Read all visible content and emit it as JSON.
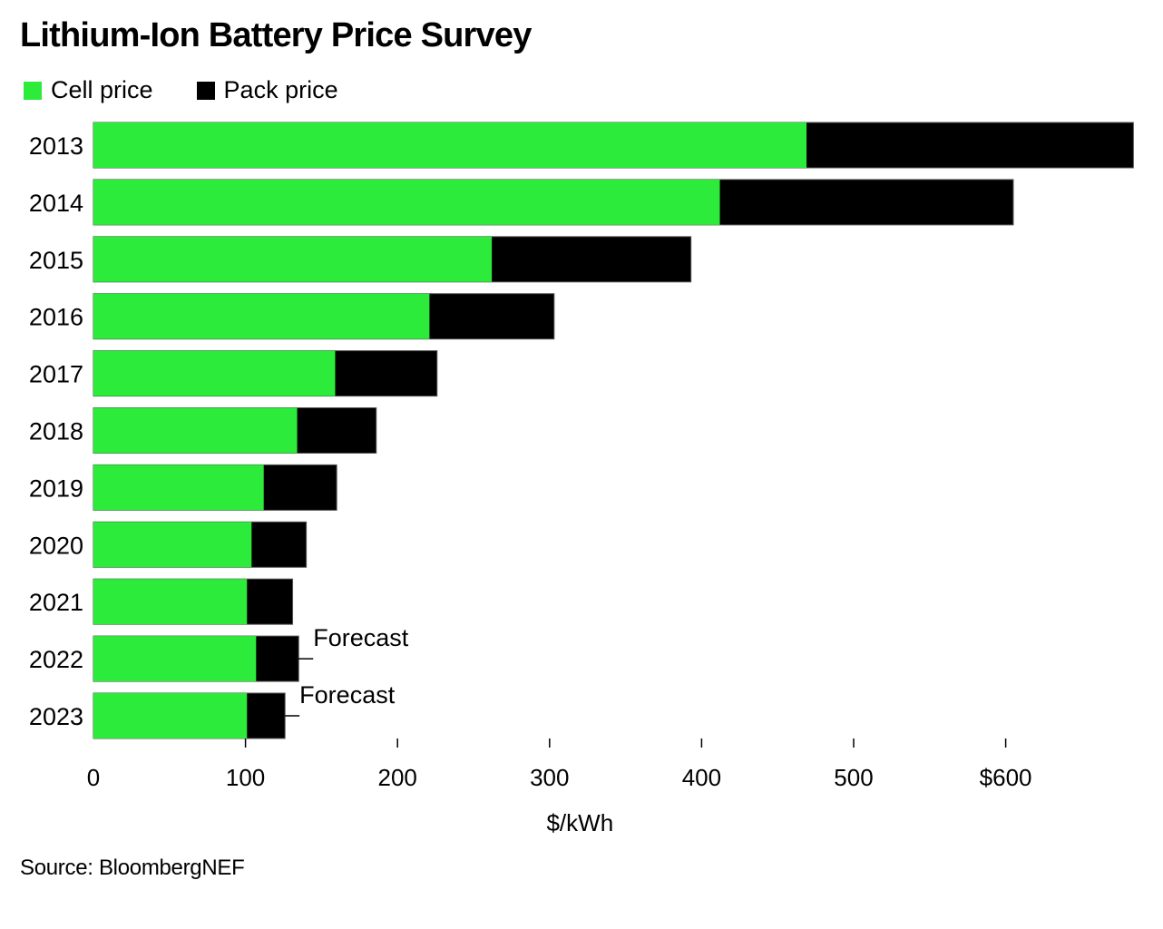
{
  "chart_data": {
    "type": "bar",
    "orientation": "horizontal",
    "stacked": true,
    "title": "Lithium-Ion Battery Price Survey",
    "xlabel": "$/kWh",
    "ylabel": "",
    "xlim": [
      0,
      684
    ],
    "x_ticks": [
      0,
      100,
      200,
      300,
      400,
      500,
      600
    ],
    "x_tick_labels": [
      "0",
      "100",
      "200",
      "300",
      "400",
      "500",
      "$600"
    ],
    "categories": [
      "2013",
      "2014",
      "2015",
      "2016",
      "2017",
      "2018",
      "2019",
      "2020",
      "2021",
      "2022",
      "2023"
    ],
    "series": [
      {
        "name": "Cell price",
        "color": "#2ceb3a",
        "values": [
          469,
          412,
          262,
          221,
          159,
          134,
          112,
          104,
          101,
          107,
          101
        ]
      },
      {
        "name": "Pack price",
        "color": "#000000",
        "values": [
          684,
          605,
          393,
          303,
          226,
          186,
          160,
          140,
          131,
          135,
          126
        ]
      }
    ],
    "note": "Pack price bar extends from 0 to total pack price; cell price is the green portion",
    "annotations": [
      {
        "category": "2022",
        "text": "Forecast"
      },
      {
        "category": "2023",
        "text": "Forecast"
      }
    ],
    "grid": false,
    "legend_position": "top-left",
    "source": "Source: BloombergNEF"
  }
}
